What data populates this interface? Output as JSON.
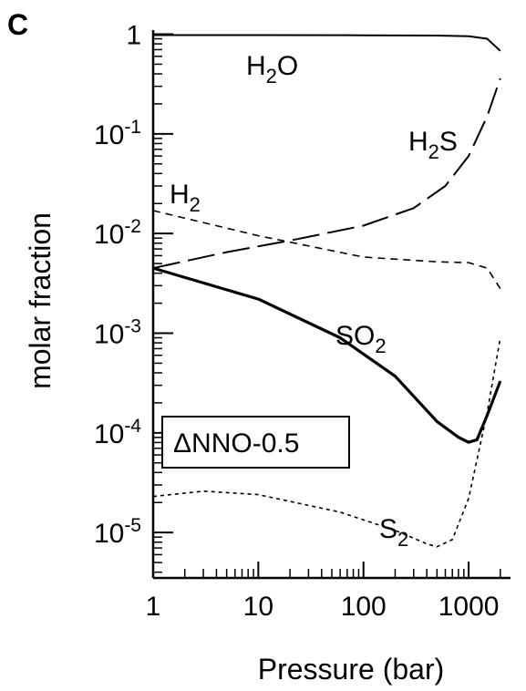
{
  "chart_data": {
    "type": "line",
    "panel_label": "C",
    "xlabel": "Pressure (bar)",
    "ylabel": "molar fraction",
    "x_scale": "log",
    "y_scale": "log",
    "xlim": [
      1,
      2500
    ],
    "ylim": [
      3.5e-06,
      1.1
    ],
    "x_ticks": [
      {
        "value": 1,
        "label": "1"
      },
      {
        "value": 10,
        "label": "10"
      },
      {
        "value": 100,
        "label": "100"
      },
      {
        "value": 1000,
        "label": "1000"
      }
    ],
    "y_ticks": [
      {
        "value": 1,
        "base": "1",
        "exp": ""
      },
      {
        "value": 0.1,
        "base": "10",
        "exp": "-1"
      },
      {
        "value": 0.01,
        "base": "10",
        "exp": "-2"
      },
      {
        "value": 0.001,
        "base": "10",
        "exp": "-3"
      },
      {
        "value": 0.0001,
        "base": "10",
        "exp": "-4"
      },
      {
        "value": 1e-05,
        "base": "10",
        "exp": "-5"
      }
    ],
    "annotation_box": "ΔNNO-0.5",
    "grid": false,
    "legend": "none",
    "series": [
      {
        "label_base": "H",
        "label_sub": "2",
        "label_tail": "O",
        "style": "solid",
        "width": 2,
        "x": [
          1,
          10,
          100,
          500,
          1000,
          1500,
          2000
        ],
        "y": [
          0.98,
          0.98,
          0.975,
          0.97,
          0.955,
          0.9,
          0.68
        ]
      },
      {
        "label_base": "H",
        "label_sub": "2",
        "label_tail": "S",
        "style": "longdash",
        "width": 2,
        "x": [
          1,
          5,
          20,
          100,
          300,
          600,
          1000,
          1500,
          2000
        ],
        "y": [
          0.0045,
          0.0065,
          0.0085,
          0.012,
          0.018,
          0.03,
          0.06,
          0.15,
          0.36
        ]
      },
      {
        "label_base": "H",
        "label_sub": "2",
        "label_tail": "",
        "style": "dashed",
        "width": 1.6,
        "x": [
          1,
          10,
          100,
          500,
          1000,
          1500,
          2000
        ],
        "y": [
          0.017,
          0.0095,
          0.0058,
          0.0052,
          0.0051,
          0.0045,
          0.0028
        ]
      },
      {
        "label_base": "SO",
        "label_sub": "2",
        "label_tail": "",
        "style": "solid",
        "width": 3.2,
        "x": [
          1,
          10,
          60,
          200,
          500,
          800,
          1000,
          1200,
          1500,
          2000
        ],
        "y": [
          0.0045,
          0.0022,
          0.0009,
          0.00037,
          0.00013,
          9.03e-05,
          8.03e-05,
          8.52e-05,
          0.00015,
          0.00033
        ]
      },
      {
        "label_base": "S",
        "label_sub": "2",
        "label_tail": "",
        "style": "dotted",
        "width": 1.6,
        "x": [
          1,
          3,
          10,
          60,
          200,
          400,
          500,
          700,
          1000,
          1500,
          2000
        ],
        "y": [
          2.3e-05,
          2.6e-05,
          2.4e-05,
          1.6e-05,
          1.05e-05,
          7.7e-06,
          7.2e-06,
          8.5e-06,
          2.2e-05,
          0.00016,
          0.0009
        ]
      }
    ]
  }
}
